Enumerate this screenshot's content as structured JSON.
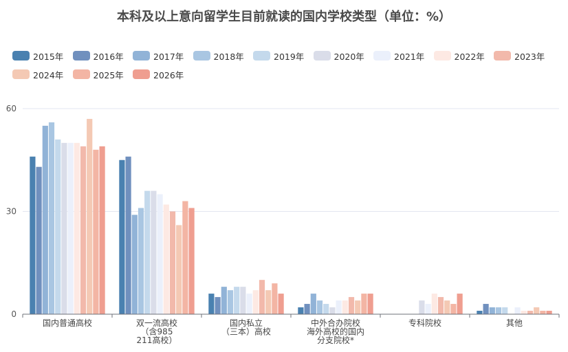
{
  "chart_data": {
    "type": "bar",
    "title": "本科及以上意向留学生目前就读的国内学校类型（单位：%）",
    "categories": [
      [
        "国内普通高校"
      ],
      [
        "双一流高校",
        "（含985",
        "211高校）"
      ],
      [
        "国内私立",
        "（三本）高校"
      ],
      [
        "中外合办院校",
        "海外高校的国内",
        "分支院校*"
      ],
      [
        "专科院校"
      ],
      [
        "其他"
      ]
    ],
    "ylim": [
      0,
      60
    ],
    "yticks": [
      0,
      30,
      60
    ],
    "grid": true,
    "legend_position": "top",
    "series": [
      {
        "name": "2015年",
        "color": "#4a81b0",
        "values": [
          46,
          45,
          6,
          2,
          0,
          1
        ]
      },
      {
        "name": "2016年",
        "color": "#7090be",
        "values": [
          43,
          46,
          5,
          3,
          0,
          3
        ]
      },
      {
        "name": "2017年",
        "color": "#91b3d7",
        "values": [
          55,
          29,
          8,
          6,
          0,
          2
        ]
      },
      {
        "name": "2018年",
        "color": "#a9c6e2",
        "values": [
          56,
          31,
          7,
          4,
          0,
          2
        ]
      },
      {
        "name": "2019年",
        "color": "#c4d9ec",
        "values": [
          51,
          36,
          8,
          3,
          0,
          2
        ]
      },
      {
        "name": "2020年",
        "color": "#dadde9",
        "values": [
          50,
          36,
          8,
          2,
          4,
          0
        ]
      },
      {
        "name": "2021年",
        "color": "#ebf0fb",
        "values": [
          50,
          35,
          6,
          4,
          3,
          2
        ]
      },
      {
        "name": "2022年",
        "color": "#fde9e3",
        "values": [
          50,
          32,
          7,
          4,
          6,
          1
        ]
      },
      {
        "name": "2023年",
        "color": "#f2b9ab",
        "values": [
          49,
          30,
          10,
          5,
          5,
          1
        ]
      },
      {
        "name": "2024年",
        "color": "#f4c9b4",
        "values": [
          57,
          26,
          7,
          4,
          4,
          2
        ]
      },
      {
        "name": "2025年",
        "color": "#f3b5a4",
        "values": [
          48,
          33,
          9,
          6,
          3,
          1
        ]
      },
      {
        "name": "2026年",
        "color": "#ef9e90",
        "values": [
          49,
          31,
          6,
          6,
          6,
          1
        ]
      }
    ]
  }
}
